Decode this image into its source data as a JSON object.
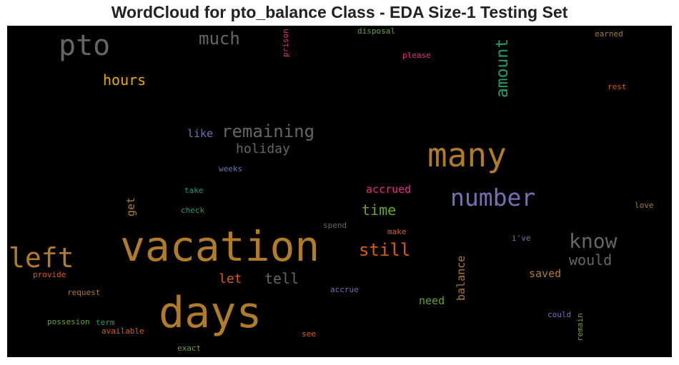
{
  "title": "WordCloud for pto_balance Class - EDA Size-1 Testing Set",
  "chart_data": {
    "type": "wordcloud",
    "background": "#000000",
    "words": [
      {
        "text": "vacation",
        "color": "#b07c2a"
      },
      {
        "text": "days",
        "color": "#b07c2a"
      },
      {
        "text": "many",
        "color": "#b07c2a"
      },
      {
        "text": "left",
        "color": "#b07c2a"
      },
      {
        "text": "pto",
        "color": "#666666"
      },
      {
        "text": "number",
        "color": "#7570b3"
      },
      {
        "text": "know",
        "color": "#666666"
      },
      {
        "text": "amount",
        "color": "#1b9e77"
      },
      {
        "text": "much",
        "color": "#666666"
      },
      {
        "text": "remaining",
        "color": "#666666"
      },
      {
        "text": "still",
        "color": "#d95f02"
      },
      {
        "text": "time",
        "color": "#66a61e"
      },
      {
        "text": "hours",
        "color": "#e6ab02"
      },
      {
        "text": "holiday",
        "color": "#666666"
      },
      {
        "text": "would",
        "color": "#666666"
      },
      {
        "text": "tell",
        "color": "#666666"
      },
      {
        "text": "let",
        "color": "#d95f02"
      },
      {
        "text": "accrued",
        "color": "#e7298a"
      },
      {
        "text": "saved",
        "color": "#b07c2a"
      },
      {
        "text": "balance",
        "color": "#b07c2a"
      },
      {
        "text": "need",
        "color": "#66a61e"
      },
      {
        "text": "like",
        "color": "#7570b3"
      },
      {
        "text": "get",
        "color": "#b07c2a"
      },
      {
        "text": "disposal",
        "color": "#66a61e"
      },
      {
        "text": "prison",
        "color": "#e7298a"
      },
      {
        "text": "please",
        "color": "#e7298a"
      },
      {
        "text": "earned",
        "color": "#b07c2a"
      },
      {
        "text": "rest",
        "color": "#d95f02"
      },
      {
        "text": "weeks",
        "color": "#7570b3"
      },
      {
        "text": "take",
        "color": "#1b9e77"
      },
      {
        "text": "check",
        "color": "#1b9e77"
      },
      {
        "text": "love",
        "color": "#b07c2a"
      },
      {
        "text": "spend",
        "color": "#666666"
      },
      {
        "text": "make",
        "color": "#d95f02"
      },
      {
        "text": "i've",
        "color": "#7570b3"
      },
      {
        "text": "provide",
        "color": "#d95f02"
      },
      {
        "text": "request",
        "color": "#b07c2a"
      },
      {
        "text": "accrue",
        "color": "#7570b3"
      },
      {
        "text": "possesion",
        "color": "#66a61e"
      },
      {
        "text": "term",
        "color": "#1b9e77"
      },
      {
        "text": "available",
        "color": "#d95f02"
      },
      {
        "text": "could",
        "color": "#7570b3"
      },
      {
        "text": "remain",
        "color": "#66a61e"
      },
      {
        "text": "see",
        "color": "#d95f02"
      },
      {
        "text": "exact",
        "color": "#66a61e"
      }
    ]
  }
}
